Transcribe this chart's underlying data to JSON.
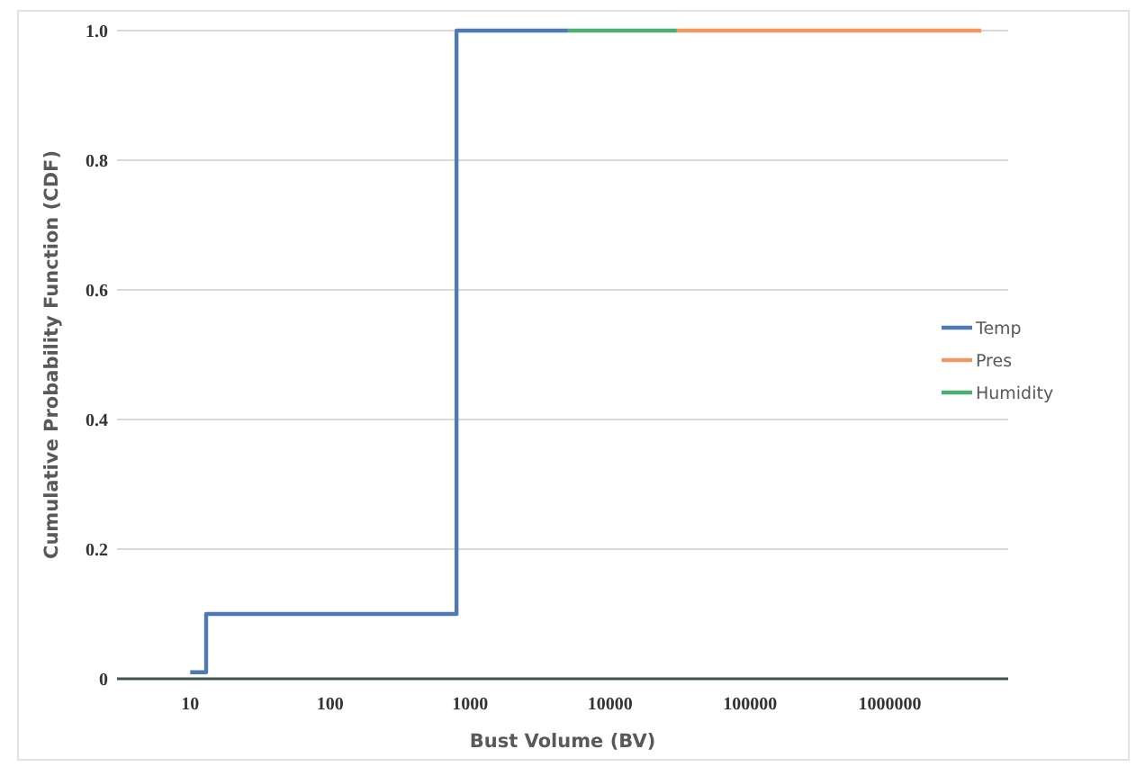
{
  "chart_data": {
    "type": "step",
    "xlabel": "Bust Volume (BV)",
    "ylabel": "Cumulative Probability Function (CDF)",
    "log": "x",
    "xlim": [
      3,
      7000000
    ],
    "xticks": [
      10,
      100,
      1000,
      10000,
      100000,
      1000000
    ],
    "ylim": [
      0,
      1
    ],
    "yticks": [
      0,
      0.2,
      0.4,
      0.6,
      0.8,
      {
        "value": 1,
        "label": "1.0"
      }
    ],
    "grid": "y",
    "legend": "right",
    "series": [
      {
        "name": "Temp",
        "color": "#4f79b5",
        "x": [
          10,
          13,
          800,
          5000
        ],
        "values": [
          0.01,
          0.1,
          1,
          1
        ]
      },
      {
        "name": "Pres",
        "color": "#ee9a62",
        "x": [
          30000,
          4500000
        ],
        "values": [
          1,
          1
        ]
      },
      {
        "name": "Humidity",
        "color": "#4cae72",
        "x": [
          5000,
          30000
        ],
        "values": [
          1,
          1
        ]
      }
    ]
  }
}
